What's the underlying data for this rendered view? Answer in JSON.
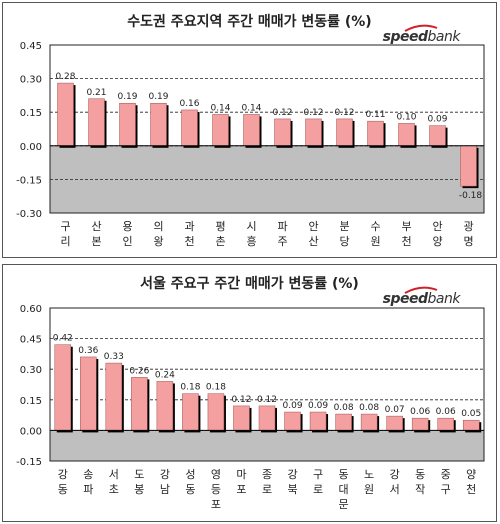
{
  "logo": {
    "part1": "speed",
    "part2": "bank",
    "brand_color": "#d21f2a"
  },
  "chart_data": [
    {
      "type": "bar",
      "title": "수도권 주요지역 주간 매매가 변동률 (%)",
      "categories": [
        [
          "구",
          "리"
        ],
        [
          "산",
          "본"
        ],
        [
          "용",
          "인"
        ],
        [
          "의",
          "왕"
        ],
        [
          "과",
          "천"
        ],
        [
          "평",
          "촌"
        ],
        [
          "시",
          "흥"
        ],
        [
          "파",
          "주"
        ],
        [
          "안",
          "산"
        ],
        [
          "분",
          "당"
        ],
        [
          "수",
          "원"
        ],
        [
          "부",
          "천"
        ],
        [
          "안",
          "양"
        ],
        [
          "광",
          "명"
        ]
      ],
      "values": [
        0.28,
        0.21,
        0.19,
        0.19,
        0.16,
        0.14,
        0.14,
        0.12,
        0.12,
        0.12,
        0.11,
        0.1,
        0.09,
        -0.18
      ],
      "value_labels": [
        "0.28",
        "0.21",
        "0.19",
        "0.19",
        "0.16",
        "0.14",
        "0.14",
        "0.12",
        "0.12",
        "0.12",
        "0.11",
        "0.10",
        "0.09",
        "-0.18"
      ],
      "yticks": [
        "0.45",
        "0.30",
        "0.15",
        "0.00",
        "-0.15",
        "-0.30"
      ],
      "ylim": [
        -0.3,
        0.45
      ],
      "bar_color": "#f4a0a0",
      "plot_bg_color": "#bfbfbf"
    },
    {
      "type": "bar",
      "title": "서울 주요구 주간 매매가 변동률 (%)",
      "categories": [
        [
          "강",
          "동"
        ],
        [
          "송",
          "파"
        ],
        [
          "서",
          "초"
        ],
        [
          "도",
          "봉"
        ],
        [
          "강",
          "남"
        ],
        [
          "성",
          "동"
        ],
        [
          "영",
          "등",
          "포"
        ],
        [
          "마",
          "포"
        ],
        [
          "종",
          "로"
        ],
        [
          "강",
          "북"
        ],
        [
          "구",
          "로"
        ],
        [
          "동",
          "대",
          "문"
        ],
        [
          "노",
          "원"
        ],
        [
          "강",
          "서"
        ],
        [
          "동",
          "작"
        ],
        [
          "중",
          "구"
        ],
        [
          "양",
          "천"
        ]
      ],
      "values": [
        0.42,
        0.36,
        0.33,
        0.26,
        0.24,
        0.18,
        0.18,
        0.12,
        0.12,
        0.09,
        0.09,
        0.08,
        0.08,
        0.07,
        0.06,
        0.06,
        0.05
      ],
      "value_labels": [
        "0.42",
        "0.36",
        "0.33",
        "0.26",
        "0.24",
        "0.18",
        "0.18",
        "0.12",
        "0.12",
        "0.09",
        "0.09",
        "0.08",
        "0.08",
        "0.07",
        "0.06",
        "0.06",
        "0.05"
      ],
      "yticks": [
        "0.60",
        "0.45",
        "0.30",
        "0.15",
        "0.00",
        "-0.15"
      ],
      "ylim": [
        -0.15,
        0.6
      ],
      "bar_color": "#f4a0a0",
      "plot_bg_color": "#bfbfbf"
    }
  ]
}
